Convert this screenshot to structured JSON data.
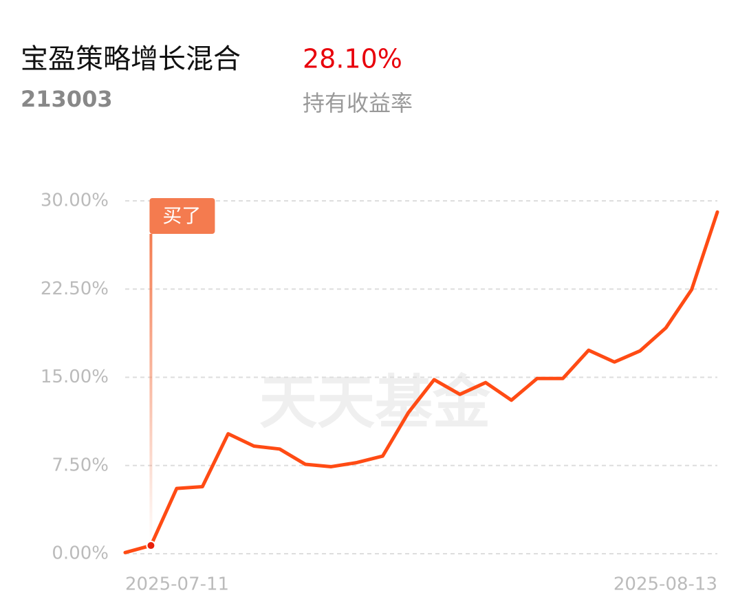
{
  "fund_name": "宝盈策略增长混合",
  "fund_code": "213003",
  "return_value": "28.10%",
  "return_label": "持有收益率",
  "chart_data": {
    "type": "line",
    "watermark": "天天基金",
    "categories": [
      "2025-07-11",
      null,
      null,
      null,
      null,
      null,
      null,
      null,
      null,
      null,
      null,
      null,
      null,
      null,
      null,
      null,
      null,
      null,
      null,
      null,
      null,
      null,
      null,
      "2025-08-13"
    ],
    "series": [
      {
        "color": "#ff4b14",
        "values": [
          0.1,
          0.7,
          5.55,
          5.7,
          10.2,
          9.15,
          8.9,
          7.6,
          7.4,
          7.75,
          8.3,
          12.0,
          14.8,
          13.55,
          14.55,
          13.05,
          14.9,
          14.9,
          17.3,
          16.3,
          17.25,
          19.2,
          22.45,
          29.05
        ]
      }
    ],
    "ylim": [
      0,
      30
    ],
    "yticks": [
      {
        "value": 0,
        "label": "0.00%"
      },
      {
        "value": 7.5,
        "label": "7.50%"
      },
      {
        "value": 15,
        "label": "15.00%"
      },
      {
        "value": 22.5,
        "label": "22.50%"
      },
      {
        "value": 30,
        "label": "30.00%"
      }
    ],
    "grid": true,
    "annotation": {
      "text": "买了",
      "index": 1,
      "color": "#f47b4f"
    }
  }
}
